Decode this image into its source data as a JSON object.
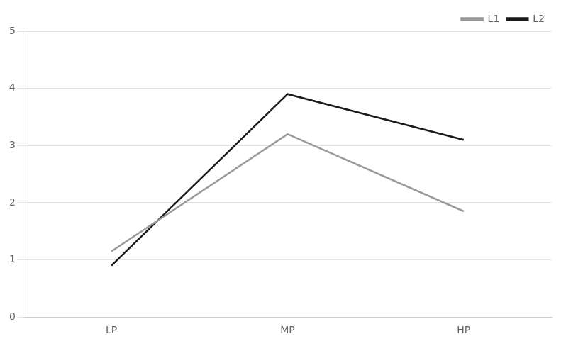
{
  "chart_data": {
    "type": "line",
    "categories": [
      "LP",
      "MP",
      "HP"
    ],
    "series": [
      {
        "name": "L1",
        "color": "#999999",
        "values": [
          1.15,
          3.2,
          1.85
        ]
      },
      {
        "name": "L2",
        "color": "#1a1a1a",
        "values": [
          0.9,
          3.9,
          3.1
        ]
      }
    ],
    "ylim": [
      0,
      5
    ],
    "yticks": [
      0,
      1,
      2,
      3,
      4,
      5
    ],
    "grid": true,
    "legend": "upper right"
  }
}
